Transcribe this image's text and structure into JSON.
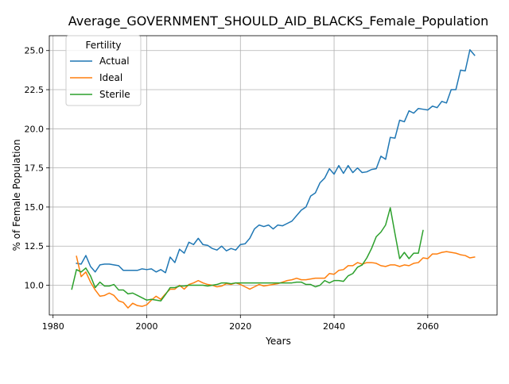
{
  "chart_data": {
    "type": "line",
    "title": "Average_GOVERNMENT_SHOULD_AID_BLACKS_Female_Population",
    "xlabel": "Years",
    "ylabel": "% of Female Population",
    "xlim": [
      1979.2,
      2074.8
    ],
    "ylim": [
      8.1,
      25.95
    ],
    "xticks": [
      1980,
      2000,
      2020,
      2040,
      2060
    ],
    "yticks": [
      10.0,
      12.5,
      15.0,
      17.5,
      20.0,
      22.5,
      25.0
    ],
    "xtick_labels": [
      "1980",
      "2000",
      "2020",
      "2040",
      "2060"
    ],
    "ytick_labels": [
      "10.0",
      "12.5",
      "15.0",
      "17.5",
      "20.0",
      "22.5",
      "25.0"
    ],
    "grid": true,
    "legend": {
      "title": "Fertility",
      "placement": "upper-left"
    },
    "series": [
      {
        "name": "Actual",
        "color": "#1f77b4",
        "x": [
          1985,
          1986,
          1987,
          1988,
          1989,
          1990,
          1991,
          1992,
          1993,
          1994,
          1995,
          1996,
          1997,
          1998,
          1999,
          2000,
          2001,
          2002,
          2003,
          2004,
          2005,
          2006,
          2007,
          2008,
          2009,
          2010,
          2011,
          2012,
          2013,
          2014,
          2015,
          2016,
          2017,
          2018,
          2019,
          2020,
          2021,
          2022,
          2023,
          2024,
          2025,
          2026,
          2027,
          2028,
          2029,
          2030,
          2031,
          2032,
          2033,
          2034,
          2035,
          2036,
          2037,
          2038,
          2039,
          2040,
          2041,
          2042,
          2043,
          2044,
          2045,
          2046,
          2047,
          2048,
          2049,
          2050,
          2051,
          2052,
          2053,
          2054,
          2055,
          2056,
          2057,
          2058,
          2059,
          2060,
          2061,
          2062,
          2063,
          2064,
          2065,
          2066,
          2067,
          2068,
          2069,
          2070
        ],
        "y": [
          11.4,
          11.35,
          11.9,
          11.2,
          10.85,
          11.3,
          11.35,
          11.35,
          11.3,
          11.25,
          10.95,
          10.95,
          10.95,
          10.95,
          11.05,
          11.0,
          11.05,
          10.85,
          11.0,
          10.8,
          11.8,
          11.45,
          12.3,
          12.05,
          12.75,
          12.6,
          13.0,
          12.6,
          12.55,
          12.35,
          12.25,
          12.5,
          12.2,
          12.35,
          12.25,
          12.6,
          12.65,
          13.0,
          13.6,
          13.85,
          13.75,
          13.85,
          13.6,
          13.85,
          13.8,
          13.95,
          14.1,
          14.45,
          14.8,
          15.0,
          15.7,
          15.9,
          16.55,
          16.85,
          17.45,
          17.1,
          17.65,
          17.15,
          17.65,
          17.2,
          17.5,
          17.2,
          17.25,
          17.4,
          17.45,
          18.25,
          18.05,
          19.45,
          19.4,
          20.55,
          20.45,
          21.15,
          21.0,
          21.3,
          21.25,
          21.2,
          21.45,
          21.35,
          21.75,
          21.65,
          22.5,
          22.5,
          23.75,
          23.7,
          25.05,
          24.7
        ]
      },
      {
        "name": "Ideal",
        "color": "#ff7f0e",
        "x": [
          1985,
          1986,
          1987,
          1988,
          1989,
          1990,
          1991,
          1992,
          1993,
          1994,
          1995,
          1996,
          1997,
          1998,
          1999,
          2000,
          2001,
          2002,
          2003,
          2004,
          2005,
          2006,
          2007,
          2008,
          2009,
          2010,
          2011,
          2012,
          2013,
          2014,
          2015,
          2016,
          2017,
          2018,
          2019,
          2020,
          2021,
          2022,
          2023,
          2024,
          2025,
          2026,
          2027,
          2028,
          2029,
          2030,
          2031,
          2032,
          2033,
          2034,
          2035,
          2036,
          2037,
          2038,
          2039,
          2040,
          2041,
          2042,
          2043,
          2044,
          2045,
          2046,
          2047,
          2048,
          2049,
          2050,
          2051,
          2052,
          2053,
          2054,
          2055,
          2056,
          2057,
          2058,
          2059,
          2060,
          2061,
          2062,
          2063,
          2064,
          2065,
          2066,
          2067,
          2068,
          2069,
          2070
        ],
        "y": [
          11.85,
          10.55,
          10.85,
          10.2,
          9.7,
          9.3,
          9.35,
          9.5,
          9.35,
          9.0,
          8.9,
          8.55,
          8.85,
          8.7,
          8.65,
          8.75,
          9.05,
          9.3,
          9.1,
          9.45,
          9.75,
          9.75,
          10.0,
          9.75,
          10.05,
          10.15,
          10.3,
          10.15,
          10.05,
          10.0,
          9.9,
          9.95,
          10.1,
          10.05,
          10.15,
          10.05,
          9.9,
          9.75,
          9.9,
          10.05,
          9.95,
          10.0,
          10.05,
          10.1,
          10.2,
          10.3,
          10.35,
          10.45,
          10.35,
          10.35,
          10.4,
          10.45,
          10.45,
          10.45,
          10.75,
          10.7,
          10.95,
          11.0,
          11.25,
          11.25,
          11.45,
          11.35,
          11.45,
          11.45,
          11.4,
          11.25,
          11.2,
          11.3,
          11.3,
          11.2,
          11.3,
          11.25,
          11.4,
          11.45,
          11.75,
          11.7,
          12.0,
          12.0,
          12.1,
          12.15,
          12.1,
          12.05,
          11.95,
          11.9,
          11.75,
          11.8
        ]
      },
      {
        "name": "Sterile",
        "color": "#2ca02c",
        "x": [
          1984,
          1985,
          1986,
          1987,
          1988,
          1989,
          1990,
          1991,
          1992,
          1993,
          1994,
          1995,
          1996,
          1997,
          1998,
          1999,
          2000,
          2001,
          2002,
          2003,
          2004,
          2005,
          2006,
          2007,
          2008,
          2009,
          2010,
          2011,
          2012,
          2013,
          2014,
          2015,
          2016,
          2017,
          2018,
          2019,
          2020,
          2021,
          2022,
          2023,
          2024,
          2025,
          2026,
          2027,
          2028,
          2029,
          2030,
          2031,
          2032,
          2033,
          2034,
          2035,
          2036,
          2037,
          2038,
          2039,
          2040,
          2041,
          2042,
          2043,
          2044,
          2045,
          2046,
          2047,
          2048,
          2049,
          2050,
          2051,
          2052,
          2053,
          2054,
          2055,
          2056,
          2057,
          2058,
          2059
        ],
        "y": [
          9.75,
          11.0,
          10.85,
          11.1,
          10.6,
          9.85,
          10.2,
          9.95,
          9.95,
          10.05,
          9.7,
          9.7,
          9.45,
          9.5,
          9.35,
          9.2,
          9.05,
          9.1,
          9.05,
          9.0,
          9.4,
          9.85,
          9.85,
          9.95,
          9.95,
          10.0,
          10.0,
          10.0,
          10.0,
          9.95,
          10.0,
          10.05,
          10.15,
          10.15,
          10.1,
          10.15,
          10.15,
          10.15,
          10.15,
          10.15,
          10.15,
          10.15,
          10.15,
          10.15,
          10.15,
          10.15,
          10.15,
          10.15,
          10.2,
          10.2,
          10.05,
          10.05,
          9.9,
          10.0,
          10.3,
          10.15,
          10.3,
          10.3,
          10.25,
          10.6,
          10.75,
          11.15,
          11.3,
          11.75,
          12.35,
          13.1,
          13.4,
          13.85,
          14.95,
          13.3,
          11.7,
          12.1,
          11.7,
          12.05,
          12.05,
          13.5
        ]
      }
    ]
  }
}
